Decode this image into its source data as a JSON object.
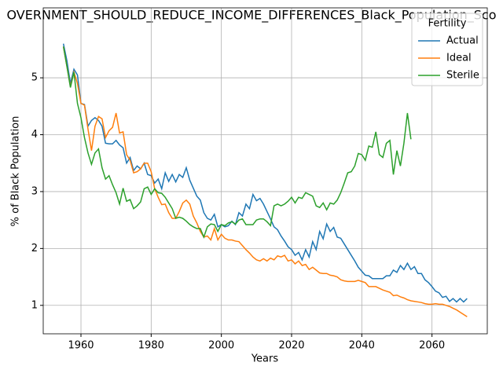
{
  "chart_data": {
    "type": "line",
    "title": "OVERNMENT_SHOULD_REDUCE_INCOME_DIFFERENCES_Black_Population_Sco",
    "x_label": "Years",
    "y_label": "% of Black Population",
    "legend_title": "Fertility",
    "legend_position": "upper right",
    "grid": true,
    "xlim": [
      1949.25,
      2075.75
    ],
    "ylim": [
      0.5,
      6.23
    ],
    "xticks": [
      1960,
      1980,
      2000,
      2020,
      2040,
      2060
    ],
    "yticks": [
      1,
      2,
      3,
      4,
      5
    ],
    "x": [
      1955,
      1956,
      1957,
      1958,
      1959,
      1960,
      1961,
      1962,
      1963,
      1964,
      1965,
      1966,
      1967,
      1968,
      1969,
      1970,
      1971,
      1972,
      1973,
      1974,
      1975,
      1976,
      1977,
      1978,
      1979,
      1980,
      1981,
      1982,
      1983,
      1984,
      1985,
      1986,
      1987,
      1988,
      1989,
      1990,
      1991,
      1992,
      1993,
      1994,
      1995,
      1996,
      1997,
      1998,
      1999,
      2000,
      2001,
      2002,
      2003,
      2004,
      2005,
      2006,
      2007,
      2008,
      2009,
      2010,
      2011,
      2012,
      2013,
      2014,
      2015,
      2016,
      2017,
      2018,
      2019,
      2020,
      2021,
      2022,
      2023,
      2024,
      2025,
      2026,
      2027,
      2028,
      2029,
      2030,
      2031,
      2032,
      2033,
      2034,
      2035,
      2036,
      2037,
      2038,
      2039,
      2040,
      2041,
      2042,
      2043,
      2044,
      2045,
      2046,
      2047,
      2048,
      2049,
      2050,
      2051,
      2052,
      2053,
      2054,
      2055,
      2056,
      2057,
      2058,
      2059,
      2060,
      2061,
      2062,
      2063,
      2064,
      2065,
      2066,
      2067,
      2068,
      2069,
      2070
    ],
    "series": [
      {
        "name": "Actual",
        "color": "#1f77b4",
        "values": [
          5.6,
          5.3,
          4.9,
          5.15,
          5.05,
          4.55,
          4.53,
          4.15,
          4.25,
          4.3,
          4.25,
          4.15,
          3.85,
          3.84,
          3.84,
          3.9,
          3.82,
          3.77,
          3.5,
          3.6,
          3.37,
          3.45,
          3.4,
          3.5,
          3.3,
          3.28,
          3.15,
          3.22,
          3.05,
          3.33,
          3.18,
          3.3,
          3.17,
          3.3,
          3.25,
          3.42,
          3.2,
          3.06,
          2.92,
          2.85,
          2.63,
          2.53,
          2.5,
          2.6,
          2.38,
          2.42,
          2.38,
          2.4,
          2.48,
          2.42,
          2.63,
          2.57,
          2.78,
          2.7,
          2.95,
          2.84,
          2.88,
          2.78,
          2.65,
          2.52,
          2.38,
          2.33,
          2.22,
          2.13,
          2.03,
          1.98,
          1.88,
          1.93,
          1.8,
          1.98,
          1.85,
          2.12,
          1.98,
          2.3,
          2.17,
          2.43,
          2.3,
          2.37,
          2.2,
          2.18,
          2.08,
          1.98,
          1.88,
          1.78,
          1.67,
          1.6,
          1.53,
          1.52,
          1.47,
          1.47,
          1.47,
          1.47,
          1.52,
          1.52,
          1.62,
          1.58,
          1.7,
          1.63,
          1.74,
          1.63,
          1.68,
          1.56,
          1.56,
          1.45,
          1.4,
          1.33,
          1.25,
          1.22,
          1.14,
          1.16,
          1.07,
          1.12,
          1.06,
          1.12,
          1.06,
          1.12
        ]
      },
      {
        "name": "Ideal",
        "color": "#ff7f0e",
        "values": [
          5.55,
          5.2,
          4.85,
          5.1,
          4.9,
          4.55,
          4.52,
          4.1,
          3.72,
          4.15,
          4.32,
          4.28,
          3.95,
          4.07,
          4.13,
          4.38,
          4.03,
          4.05,
          3.65,
          3.55,
          3.33,
          3.35,
          3.4,
          3.5,
          3.5,
          3.35,
          3.05,
          2.9,
          2.77,
          2.78,
          2.63,
          2.53,
          2.53,
          2.65,
          2.8,
          2.85,
          2.78,
          2.57,
          2.45,
          2.3,
          2.2,
          2.22,
          2.15,
          2.35,
          2.15,
          2.25,
          2.18,
          2.15,
          2.15,
          2.13,
          2.12,
          2.05,
          1.98,
          1.92,
          1.85,
          1.8,
          1.78,
          1.82,
          1.78,
          1.83,
          1.8,
          1.87,
          1.85,
          1.88,
          1.78,
          1.8,
          1.73,
          1.78,
          1.7,
          1.72,
          1.63,
          1.67,
          1.62,
          1.57,
          1.56,
          1.56,
          1.53,
          1.52,
          1.5,
          1.45,
          1.43,
          1.42,
          1.42,
          1.42,
          1.44,
          1.42,
          1.4,
          1.33,
          1.33,
          1.33,
          1.3,
          1.27,
          1.25,
          1.23,
          1.17,
          1.18,
          1.15,
          1.13,
          1.1,
          1.08,
          1.07,
          1.06,
          1.05,
          1.03,
          1.02,
          1.02,
          1.03,
          1.02,
          1.02,
          1.0,
          0.98,
          0.95,
          0.92,
          0.88,
          0.84,
          0.8
        ]
      },
      {
        "name": "Sterile",
        "color": "#2ca02c",
        "values": [
          5.55,
          5.2,
          4.83,
          5.1,
          4.55,
          4.3,
          3.95,
          3.68,
          3.48,
          3.68,
          3.75,
          3.42,
          3.22,
          3.28,
          3.12,
          2.98,
          2.78,
          3.06,
          2.83,
          2.86,
          2.7,
          2.75,
          2.82,
          3.05,
          3.08,
          2.95,
          3.05,
          2.98,
          2.97,
          2.9,
          2.8,
          2.7,
          2.53,
          2.55,
          2.53,
          2.48,
          2.42,
          2.38,
          2.35,
          2.35,
          2.2,
          2.38,
          2.43,
          2.42,
          2.3,
          2.42,
          2.4,
          2.45,
          2.47,
          2.43,
          2.5,
          2.52,
          2.42,
          2.42,
          2.42,
          2.5,
          2.52,
          2.52,
          2.47,
          2.4,
          2.75,
          2.78,
          2.75,
          2.78,
          2.83,
          2.9,
          2.8,
          2.9,
          2.88,
          2.98,
          2.95,
          2.92,
          2.75,
          2.72,
          2.8,
          2.68,
          2.8,
          2.78,
          2.85,
          2.98,
          3.15,
          3.33,
          3.35,
          3.45,
          3.67,
          3.65,
          3.55,
          3.8,
          3.78,
          4.05,
          3.65,
          3.6,
          3.85,
          3.9,
          3.3,
          3.72,
          3.45,
          3.85,
          4.38,
          3.92,
          null,
          null,
          null,
          null,
          null,
          null,
          null,
          null,
          null,
          null,
          null,
          null,
          null,
          null,
          null,
          null
        ]
      }
    ]
  }
}
